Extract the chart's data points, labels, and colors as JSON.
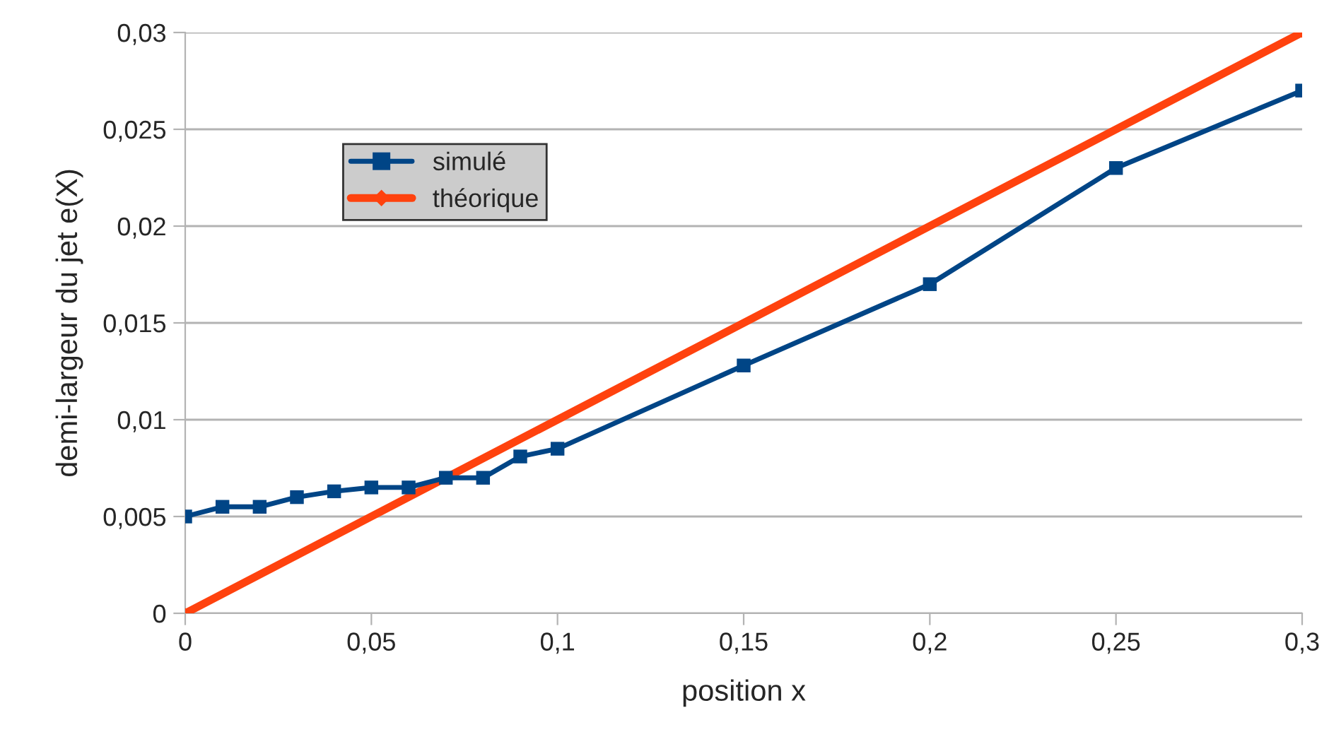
{
  "chart_data": {
    "type": "line",
    "xlabel": "position x",
    "ylabel": "demi-largeur du jet e(X)",
    "series": [
      {
        "name": "simulé",
        "color": "#004586",
        "marker": "square",
        "x": [
          0,
          0.01,
          0.02,
          0.03,
          0.04,
          0.05,
          0.06,
          0.07,
          0.08,
          0.09,
          0.1,
          0.15,
          0.2,
          0.25,
          0.3
        ],
        "values": [
          0.005,
          0.0055,
          0.0055,
          0.006,
          0.0063,
          0.0065,
          0.0065,
          0.007,
          0.007,
          0.0081,
          0.0085,
          0.0128,
          0.017,
          0.023,
          0.027
        ]
      },
      {
        "name": "théorique",
        "color": "#ff420e",
        "marker": "diamond",
        "x": [
          0,
          0.3
        ],
        "values": [
          0,
          0.03
        ]
      }
    ],
    "xlim": [
      0,
      0.3
    ],
    "ylim": [
      0,
      0.03
    ],
    "xticks": [
      0,
      {
        "value": 0.05,
        "label": "0,05"
      },
      {
        "value": 0.1,
        "label": "0,1"
      },
      {
        "value": 0.15,
        "label": "0,15"
      },
      {
        "value": 0.2,
        "label": "0,2"
      },
      {
        "value": 0.25,
        "label": "0,25"
      },
      {
        "value": 0.3,
        "label": "0,3"
      }
    ],
    "yticks": [
      0,
      {
        "value": 0.005,
        "label": "0,005"
      },
      {
        "value": 0.01,
        "label": "0,01"
      },
      {
        "value": 0.015,
        "label": "0,015"
      },
      {
        "value": 0.02,
        "label": "0,02"
      },
      {
        "value": 0.025,
        "label": "0,025"
      },
      {
        "value": 0.03,
        "label": "0,03"
      }
    ],
    "grid": "y",
    "legend": "upper left",
    "line_style": "solid"
  }
}
